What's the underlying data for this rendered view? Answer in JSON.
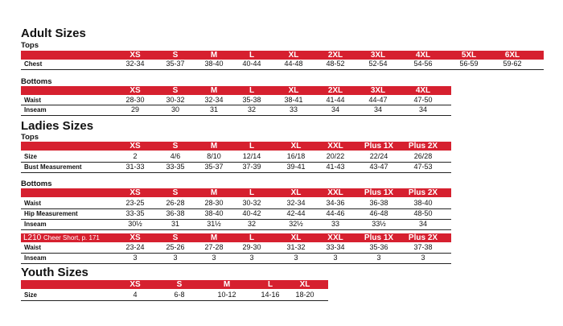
{
  "adult": {
    "title": "Adult Sizes",
    "tops": {
      "title": "Tops",
      "headers": [
        "XS",
        "S",
        "M",
        "L",
        "XL",
        "2XL",
        "3XL",
        "4XL",
        "5XL",
        "6XL"
      ],
      "rows": [
        {
          "label": "Chest",
          "values": [
            "32-34",
            "35-37",
            "38-40",
            "40-44",
            "44-48",
            "48-52",
            "52-54",
            "54-56",
            "56-59",
            "59-62"
          ]
        }
      ]
    },
    "bottoms": {
      "title": "Bottoms",
      "headers": [
        "XS",
        "S",
        "M",
        "L",
        "XL",
        "2XL",
        "3XL",
        "4XL"
      ],
      "rows": [
        {
          "label": "Waist",
          "values": [
            "28-30",
            "30-32",
            "32-34",
            "35-38",
            "38-41",
            "41-44",
            "44-47",
            "47-50"
          ]
        },
        {
          "label": "Inseam",
          "values": [
            "29",
            "30",
            "31",
            "32",
            "33",
            "34",
            "34",
            "34"
          ]
        }
      ]
    }
  },
  "ladies": {
    "title": "Ladies Sizes",
    "tops": {
      "title": "Tops",
      "headers": [
        "XS",
        "S",
        "M",
        "L",
        "XL",
        "XXL",
        "Plus 1X",
        "Plus 2X"
      ],
      "rows": [
        {
          "label": "Size",
          "values": [
            "2",
            "4/6",
            "8/10",
            "12/14",
            "16/18",
            "20/22",
            "22/24",
            "26/28"
          ]
        },
        {
          "label": "Bust Measurement",
          "values": [
            "31-33",
            "33-35",
            "35-37",
            "37-39",
            "39-41",
            "41-43",
            "43-47",
            "47-53"
          ]
        }
      ]
    },
    "bottoms": {
      "title": "Bottoms",
      "headers": [
        "XS",
        "S",
        "M",
        "L",
        "XL",
        "XXL",
        "Plus 1X",
        "Plus 2X"
      ],
      "rows": [
        {
          "label": "Waist",
          "values": [
            "23-25",
            "26-28",
            "28-30",
            "30-32",
            "32-34",
            "34-36",
            "36-38",
            "38-40"
          ]
        },
        {
          "label": "Hip Measurement",
          "values": [
            "33-35",
            "36-38",
            "38-40",
            "40-42",
            "42-44",
            "44-46",
            "46-48",
            "48-50"
          ]
        },
        {
          "label": "Inseam",
          "values": [
            "30½",
            "31",
            "31½",
            "32",
            "32½",
            "33",
            "33½",
            "34"
          ]
        }
      ]
    },
    "cheer": {
      "label_main": "L210",
      "label_note": "Cheer Short, p. 171",
      "headers": [
        "XS",
        "S",
        "M",
        "L",
        "XL",
        "XXL",
        "Plus 1X",
        "Plus 2X"
      ],
      "rows": [
        {
          "label": "Waist",
          "values": [
            "23-24",
            "25-26",
            "27-28",
            "29-30",
            "31-32",
            "33-34",
            "35-36",
            "37-38"
          ]
        },
        {
          "label": "Inseam",
          "values": [
            "3",
            "3",
            "3",
            "3",
            "3",
            "3",
            "3",
            "3"
          ]
        }
      ]
    }
  },
  "youth": {
    "title": "Youth Sizes",
    "headers": [
      "XS",
      "S",
      "M",
      "L",
      "XL"
    ],
    "rows": [
      {
        "label": "Size",
        "values": [
          "4",
          "6-8",
          "10-12",
          "14-16",
          "18-20"
        ]
      }
    ]
  },
  "colors": {
    "band": "#d6202f",
    "band_text": "#ffffff",
    "text": "#111111"
  }
}
